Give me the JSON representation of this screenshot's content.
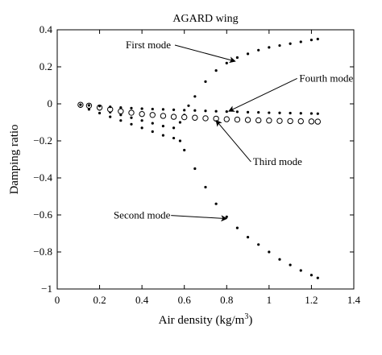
{
  "chart_data": {
    "type": "scatter",
    "title": "AGARD wing",
    "xlabel": "Air density (kg/m",
    "xlabel_superscript": "3",
    "xlabel_close": ")",
    "ylabel": "Damping ratio",
    "xlim": [
      0,
      1.4
    ],
    "ylim": [
      -1,
      0.4
    ],
    "x_ticks": [
      0,
      0.2,
      0.4,
      0.6,
      0.8,
      1,
      1.2,
      1.4
    ],
    "x_tick_labels": [
      "0",
      "0.2",
      "0.4",
      "0.6",
      "0.8",
      "1",
      "1.2",
      "1.4"
    ],
    "y_ticks": [
      0.4,
      0.2,
      0,
      -0.2,
      -0.4,
      -0.6,
      -0.8,
      -1
    ],
    "y_tick_labels": [
      "0.4",
      "0.2",
      "0",
      "−0.2",
      "−0.4",
      "−0.6",
      "−0.8",
      "−1"
    ],
    "grid": false,
    "series": [
      {
        "name": "First mode",
        "marker": "dot",
        "x": [
          0.11,
          0.15,
          0.2,
          0.25,
          0.3,
          0.35,
          0.4,
          0.45,
          0.5,
          0.55,
          0.58,
          0.6,
          0.62,
          0.65,
          0.7,
          0.75,
          0.8,
          0.85,
          0.9,
          0.95,
          1.0,
          1.05,
          1.1,
          1.15,
          1.2,
          1.23
        ],
        "y": [
          -0.01,
          -0.02,
          -0.03,
          -0.045,
          -0.06,
          -0.075,
          -0.09,
          -0.105,
          -0.12,
          -0.13,
          -0.1,
          -0.06,
          -0.01,
          0.04,
          0.12,
          0.18,
          0.22,
          0.25,
          0.27,
          0.29,
          0.305,
          0.315,
          0.325,
          0.335,
          0.345,
          0.35
        ]
      },
      {
        "name": "Second mode",
        "marker": "dot",
        "x": [
          0.11,
          0.15,
          0.2,
          0.25,
          0.3,
          0.35,
          0.4,
          0.45,
          0.5,
          0.55,
          0.58,
          0.6,
          0.65,
          0.7,
          0.75,
          0.8,
          0.85,
          0.9,
          0.95,
          1.0,
          1.05,
          1.1,
          1.15,
          1.2,
          1.23
        ],
        "y": [
          -0.015,
          -0.03,
          -0.05,
          -0.07,
          -0.09,
          -0.11,
          -0.13,
          -0.15,
          -0.17,
          -0.185,
          -0.2,
          -0.25,
          -0.35,
          -0.45,
          -0.54,
          -0.61,
          -0.67,
          -0.72,
          -0.76,
          -0.8,
          -0.84,
          -0.87,
          -0.9,
          -0.925,
          -0.94
        ]
      },
      {
        "name": "Third mode",
        "marker": "circle",
        "x": [
          0.11,
          0.15,
          0.2,
          0.25,
          0.3,
          0.35,
          0.4,
          0.45,
          0.5,
          0.55,
          0.6,
          0.65,
          0.7,
          0.75,
          0.8,
          0.85,
          0.9,
          0.95,
          1.0,
          1.05,
          1.1,
          1.15,
          1.2,
          1.23
        ],
        "y": [
          -0.005,
          -0.01,
          -0.02,
          -0.03,
          -0.04,
          -0.048,
          -0.055,
          -0.06,
          -0.065,
          -0.07,
          -0.072,
          -0.075,
          -0.078,
          -0.08,
          -0.083,
          -0.085,
          -0.087,
          -0.089,
          -0.09,
          -0.092,
          -0.093,
          -0.094,
          -0.095,
          -0.096
        ]
      },
      {
        "name": "Fourth mode",
        "marker": "dot",
        "x": [
          0.11,
          0.15,
          0.2,
          0.25,
          0.3,
          0.35,
          0.4,
          0.45,
          0.5,
          0.55,
          0.6,
          0.65,
          0.7,
          0.75,
          0.8,
          0.85,
          0.9,
          0.95,
          1.0,
          1.05,
          1.1,
          1.15,
          1.2,
          1.23
        ],
        "y": [
          -0.005,
          -0.008,
          -0.012,
          -0.016,
          -0.02,
          -0.023,
          -0.026,
          -0.028,
          -0.03,
          -0.032,
          -0.034,
          -0.036,
          -0.038,
          -0.04,
          -0.042,
          -0.043,
          -0.045,
          -0.046,
          -0.048,
          -0.049,
          -0.05,
          -0.051,
          -0.052,
          -0.053
        ]
      }
    ],
    "annotations": [
      {
        "text": "First mode",
        "series": "First mode",
        "label_anchor": [
          0.43,
          0.3
        ],
        "arrow_to": [
          0.84,
          0.23
        ]
      },
      {
        "text": "Fourth mode",
        "series": "Fourth mode",
        "label_anchor": [
          1.27,
          0.12
        ],
        "arrow_to": [
          0.81,
          -0.04
        ]
      },
      {
        "text": "Third mode",
        "series": "Third mode",
        "label_anchor": [
          1.04,
          -0.33
        ],
        "arrow_to": [
          0.75,
          -0.09
        ]
      },
      {
        "text": "Second mode",
        "series": "Second mode",
        "label_anchor": [
          0.4,
          -0.62
        ],
        "arrow_to": [
          0.8,
          -0.62
        ]
      }
    ]
  }
}
